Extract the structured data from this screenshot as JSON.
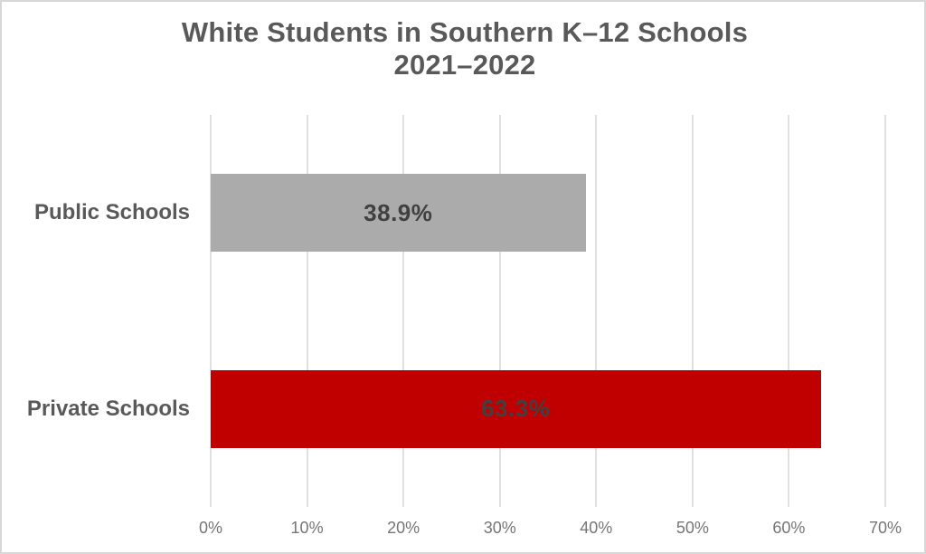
{
  "chart": {
    "title_line1": "White Students in Southern K–12 Schools",
    "title_line2": "2021–2022"
  },
  "chart_data": {
    "type": "bar",
    "orientation": "horizontal",
    "title": "White Students in Southern K–12 Schools 2021–2022",
    "categories": [
      "Public Schools",
      "Private Schools"
    ],
    "values": [
      38.9,
      63.3
    ],
    "value_labels": [
      "38.9%",
      "63.3%"
    ],
    "bar_colors": [
      "#ababab",
      "#c00000"
    ],
    "value_label_color": "#404040",
    "category_label_color": "#595959",
    "title_color": "#595959",
    "gridline_color": "#e0e0e0",
    "tick_label_color": "#757575",
    "xlabel": "",
    "ylabel": "",
    "xlim": [
      0,
      70
    ],
    "x_tick_values": [
      0,
      10,
      20,
      30,
      40,
      50,
      60,
      70
    ],
    "x_tick_labels": [
      "0%",
      "10%",
      "20%",
      "30%",
      "40%",
      "50%",
      "60%",
      "70%"
    ],
    "grid": true,
    "legend": false
  }
}
